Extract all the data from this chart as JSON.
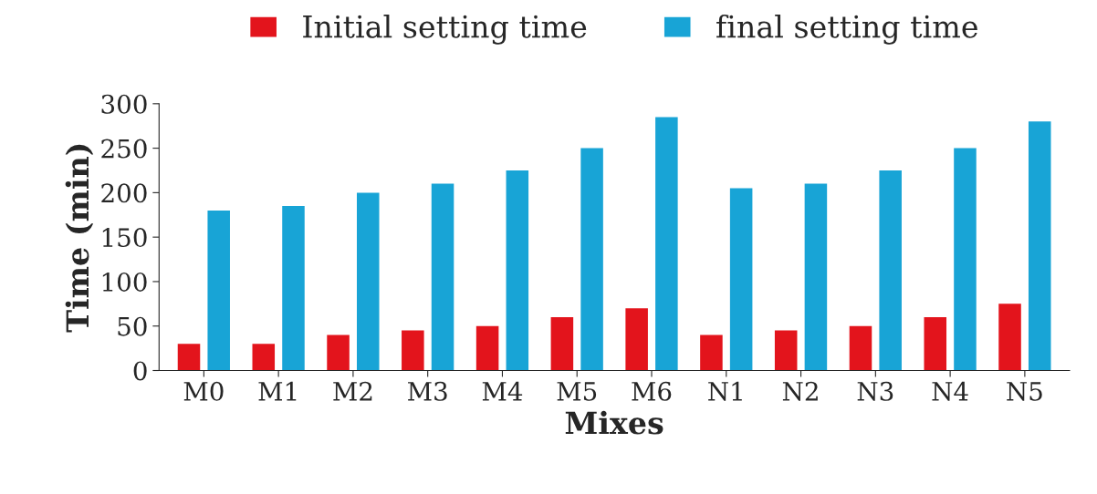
{
  "chart_data": {
    "type": "bar",
    "xlabel": "Mixes",
    "ylabel": "Time (min)",
    "categories": [
      "M0",
      "M1",
      "M2",
      "M3",
      "M4",
      "M5",
      "M6",
      "N1",
      "N2",
      "N3",
      "N4",
      "N5"
    ],
    "series": [
      {
        "name": "Initial setting time",
        "color": "#e3141c",
        "values": [
          30,
          30,
          40,
          45,
          50,
          60,
          70,
          40,
          45,
          50,
          60,
          75
        ]
      },
      {
        "name": "final setting time",
        "color": "#18a4d6",
        "values": [
          180,
          185,
          200,
          210,
          225,
          250,
          285,
          205,
          210,
          225,
          250,
          280
        ]
      }
    ],
    "ylim": [
      0,
      300
    ],
    "yticks": [
      0,
      50,
      100,
      150,
      200,
      250,
      300
    ],
    "grid": false,
    "legend": "top"
  }
}
